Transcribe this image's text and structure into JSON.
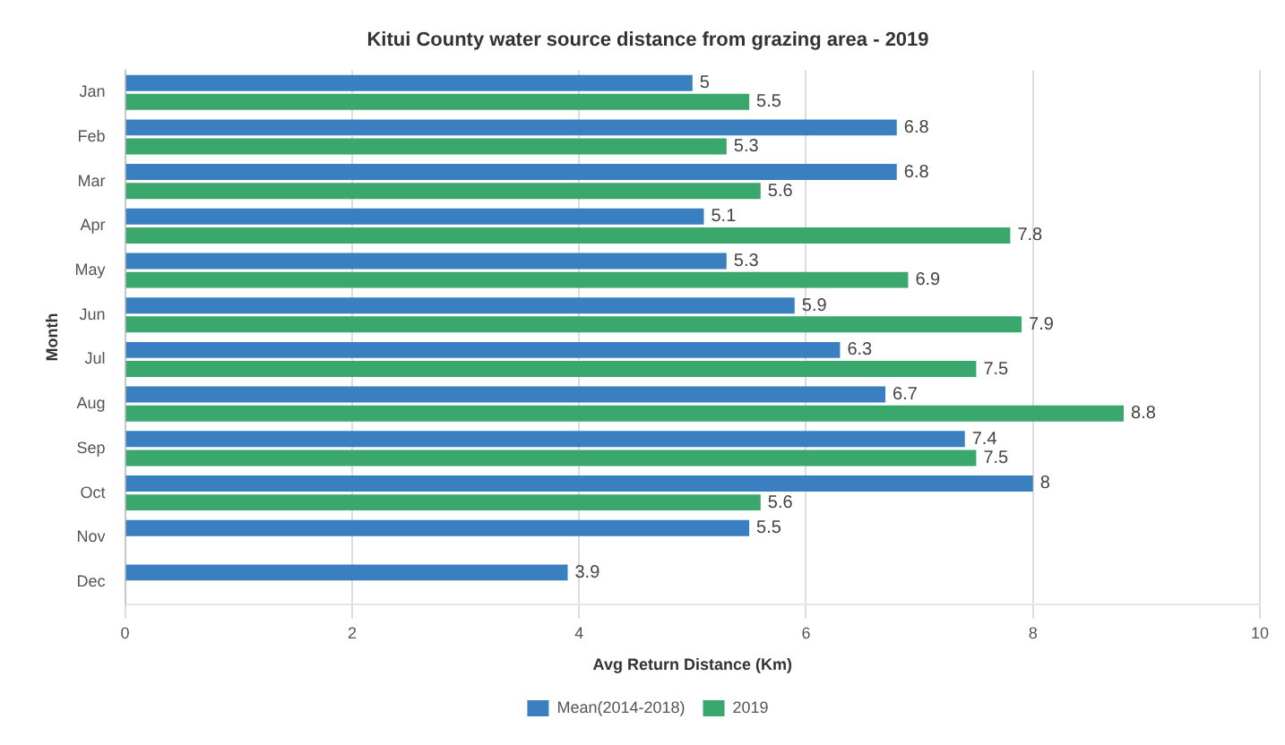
{
  "chart_data": {
    "type": "bar",
    "orientation": "horizontal",
    "title": "Kitui County water source distance from grazing area - 2019",
    "xlabel": "Avg Return Distance (Km)",
    "ylabel": "Month",
    "categories": [
      "Jan",
      "Feb",
      "Mar",
      "Apr",
      "May",
      "Jun",
      "Jul",
      "Aug",
      "Sep",
      "Oct",
      "Nov",
      "Dec"
    ],
    "series": [
      {
        "name": "Mean(2014-2018)",
        "color": "#3a7fc0",
        "values": [
          5,
          6.8,
          6.8,
          5.1,
          5.3,
          5.9,
          6.3,
          6.7,
          7.4,
          8,
          5.5,
          3.9
        ]
      },
      {
        "name": "2019",
        "color": "#3aa76d",
        "values": [
          5.5,
          5.3,
          5.6,
          7.8,
          6.9,
          7.9,
          7.5,
          8.8,
          7.5,
          5.6,
          null,
          null
        ]
      }
    ],
    "xlim": [
      0,
      10
    ],
    "xticks": [
      0,
      2,
      4,
      6,
      8,
      10
    ],
    "grid": "x",
    "legend": "bottom",
    "data_labels": true
  }
}
